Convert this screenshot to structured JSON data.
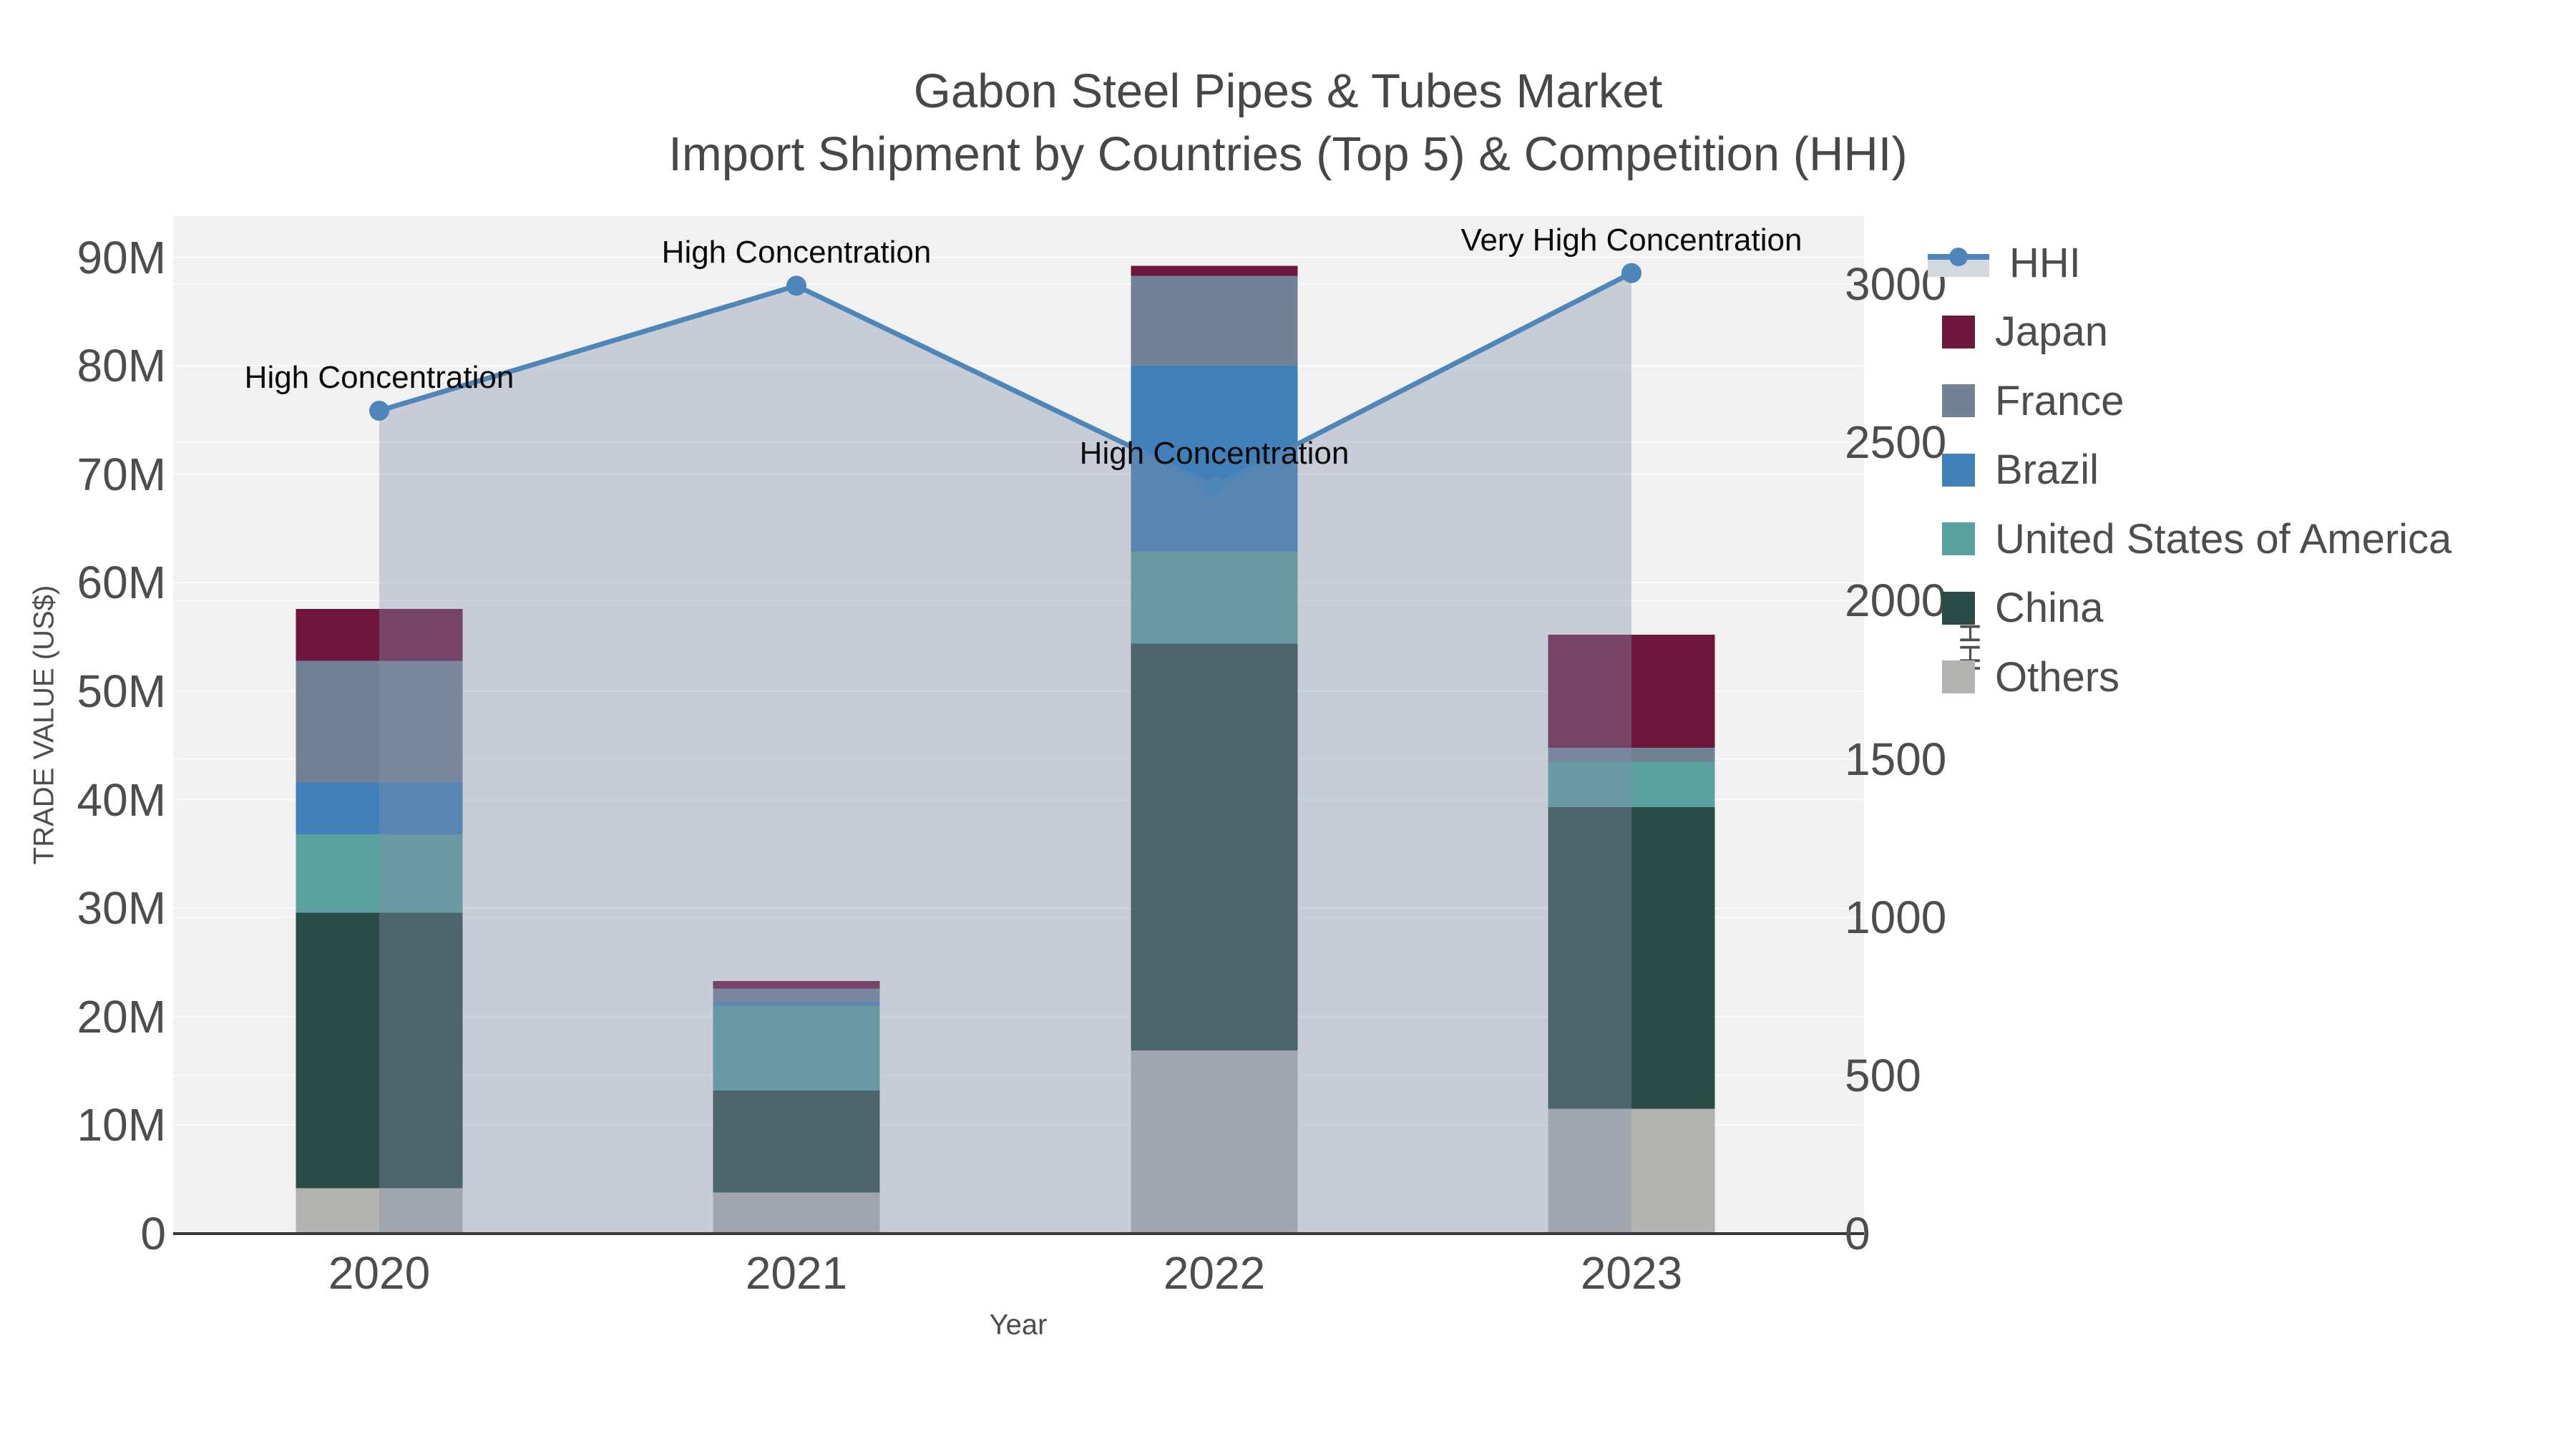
{
  "title": {
    "line1": "Gabon Steel Pipes & Tubes Market",
    "line2": "Import Shipment by Countries (Top 5) & Competition (HHI)"
  },
  "chart_data": {
    "type": "bar",
    "subtype": "stacked-bars-with-dual-axis-line",
    "categories": [
      "2020",
      "2021",
      "2022",
      "2023"
    ],
    "series": [
      {
        "name": "Others",
        "color": "#b2b2b1",
        "values": [
          4.2,
          3.8,
          16.9,
          11.5
        ]
      },
      {
        "name": "China",
        "color": "#2b4b47",
        "values": [
          25.4,
          9.4,
          37.5,
          27.8
        ]
      },
      {
        "name": "United States of America",
        "color": "#5aa1a0",
        "values": [
          7.2,
          7.8,
          8.5,
          4.2
        ]
      },
      {
        "name": "Brazil",
        "color": "#4180b8",
        "values": [
          4.8,
          0.3,
          17.1,
          0.0
        ]
      },
      {
        "name": "France",
        "color": "#718297",
        "values": [
          11.2,
          1.3,
          8.3,
          1.3
        ]
      },
      {
        "name": "Japan",
        "color": "#6e163c",
        "values": [
          4.8,
          0.7,
          0.9,
          10.4
        ]
      }
    ],
    "bar_totals_musd": [
      57.6,
      23.3,
      89.2,
      55.2
    ],
    "line_series": {
      "name": "HHI",
      "values": [
        2600,
        2995,
        2360,
        3035
      ],
      "line_color": "#4e86ba",
      "area_fill_color": "rgba(131,144,171,0.38)"
    },
    "annotations": [
      {
        "category": "2020",
        "text": "High Concentration"
      },
      {
        "category": "2021",
        "text": "High Concentration"
      },
      {
        "category": "2022",
        "text": "High Concentration"
      },
      {
        "category": "2023",
        "text": "Very High Concentration"
      }
    ],
    "xlabel": "Year",
    "ylabel_left": "TRADE VALUE (US$)",
    "ylabel_right": "HHI",
    "y_left_tick_labels": [
      "0",
      "10M",
      "20M",
      "30M",
      "40M",
      "50M",
      "60M",
      "70M",
      "80M",
      "90M"
    ],
    "y_left_tick_values": [
      0,
      10,
      20,
      30,
      40,
      50,
      60,
      70,
      80,
      90
    ],
    "y_right_tick_labels": [
      "0",
      "500",
      "1000",
      "1500",
      "2000",
      "2500",
      "3000"
    ],
    "y_right_tick_values": [
      0,
      500,
      1000,
      1500,
      2000,
      2500,
      3000
    ],
    "ylim_left_musd": [
      0,
      93.8
    ],
    "ylim_right_hhi": [
      0,
      3215
    ],
    "grid": "on",
    "plot_bg_color": "#f1f1f2",
    "gridline_color": "#fafafa",
    "axis_line_color": "#383838",
    "legend_position": "upper-right-outside"
  },
  "legend": {
    "entries": [
      {
        "name": "HHI",
        "type": "line",
        "color": "#4e86ba"
      },
      {
        "name": "Japan",
        "type": "patch",
        "color": "#6e163c"
      },
      {
        "name": "France",
        "type": "patch",
        "color": "#718297"
      },
      {
        "name": "Brazil",
        "type": "patch",
        "color": "#4180b8"
      },
      {
        "name": "United States of America",
        "type": "patch",
        "color": "#5aa1a0"
      },
      {
        "name": "China",
        "type": "patch",
        "color": "#2b4b47"
      },
      {
        "name": "Others",
        "type": "patch",
        "color": "#b2b2b1"
      }
    ]
  }
}
